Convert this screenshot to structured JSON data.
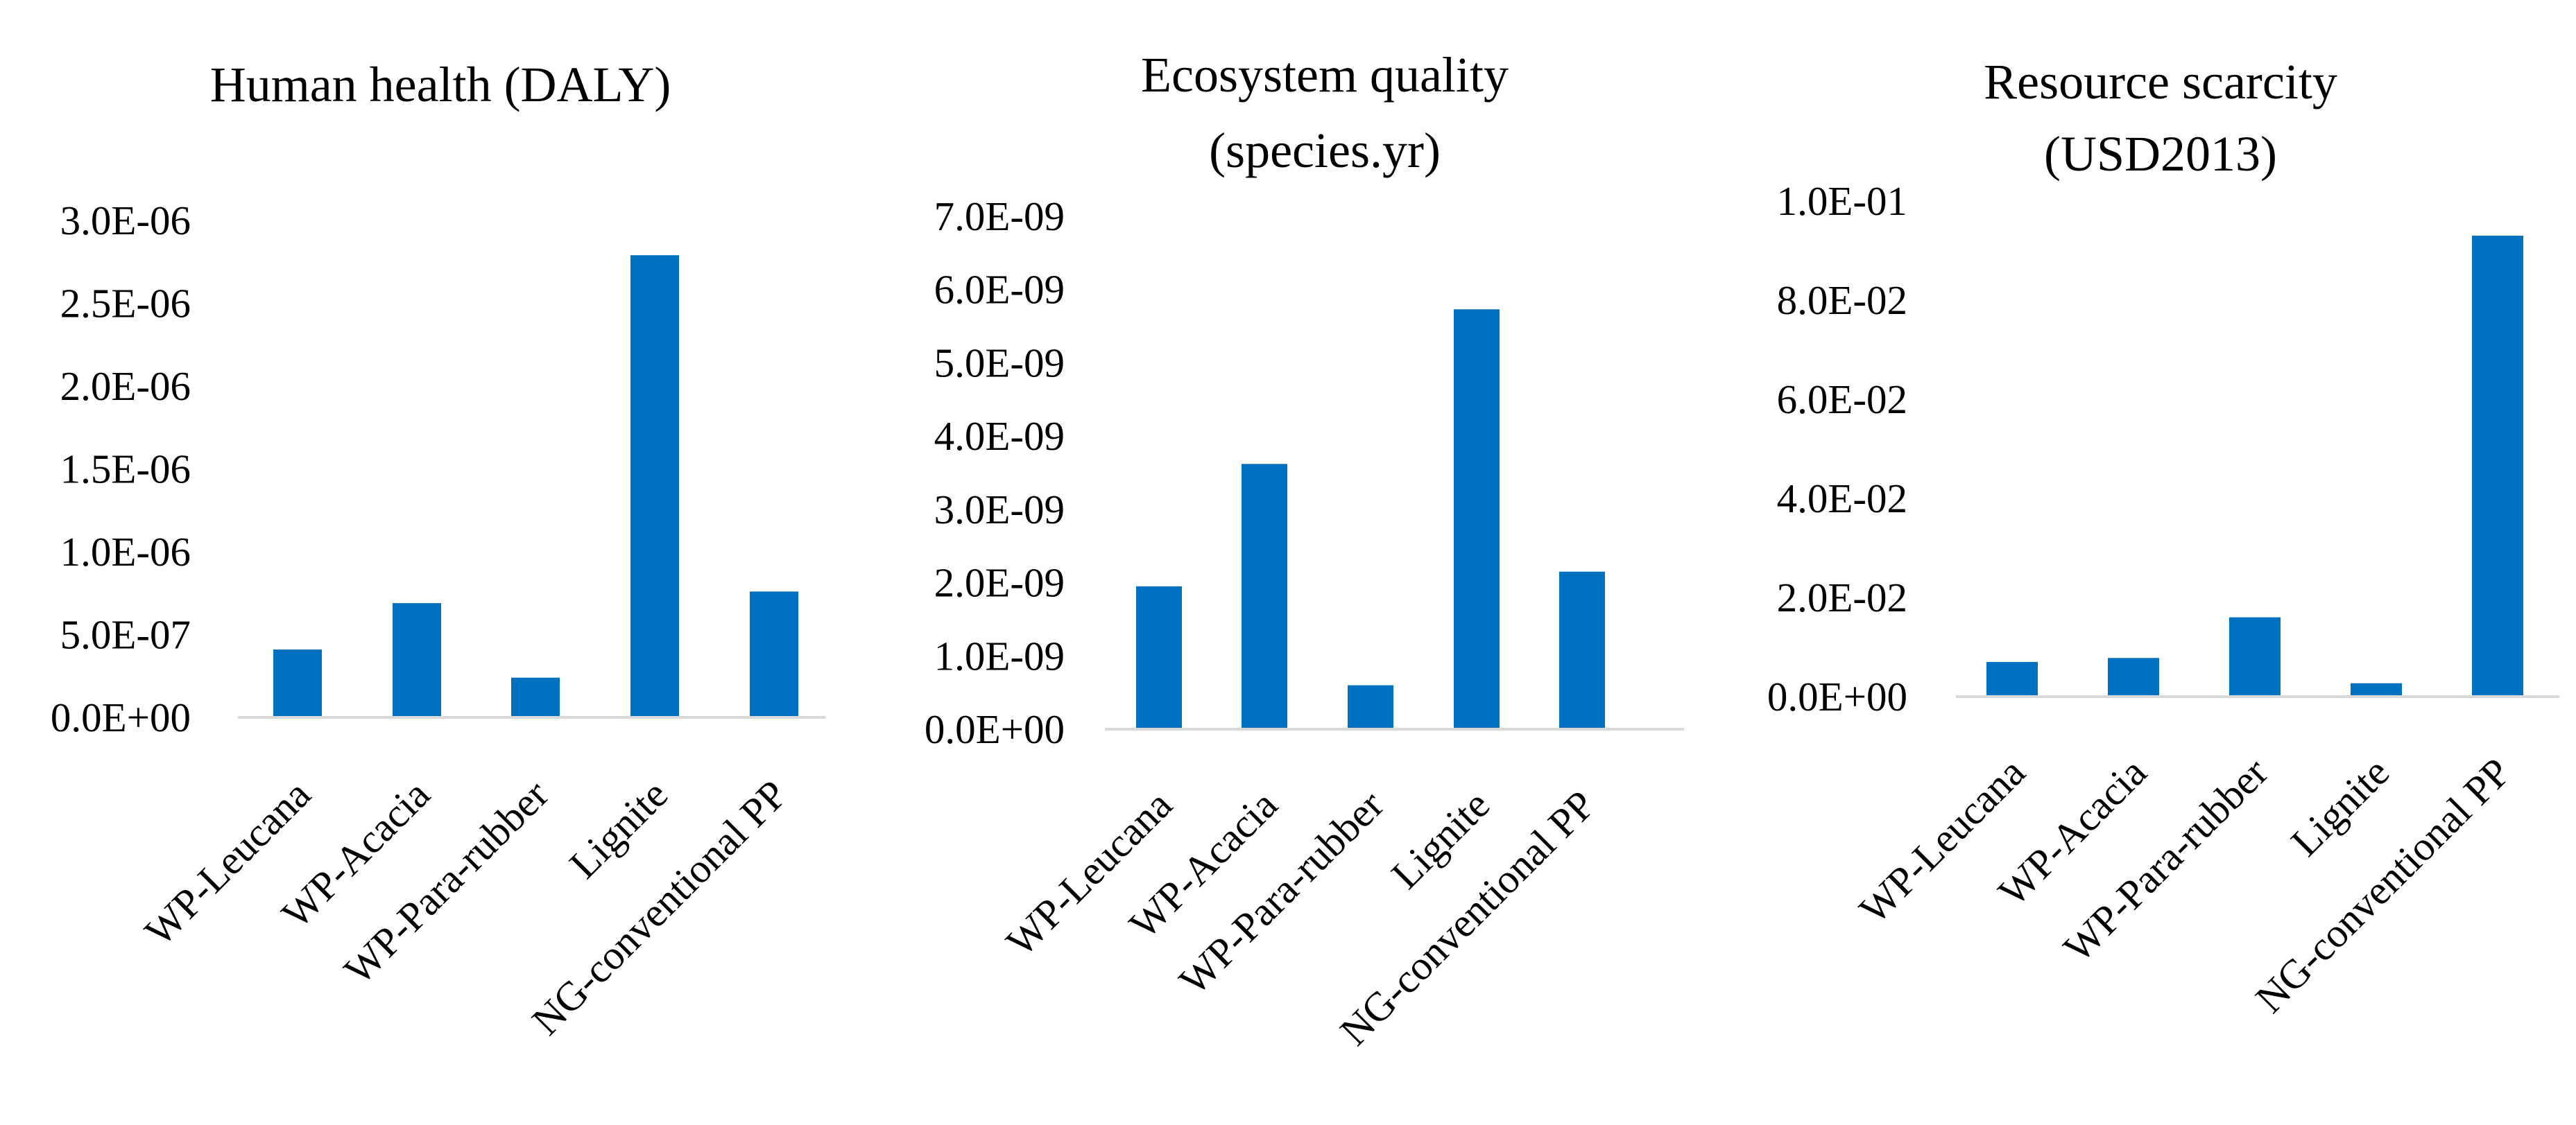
{
  "colors": {
    "bar": "#0070C0",
    "axis": "#D9D9D9",
    "text": "#000000"
  },
  "chart_data": [
    {
      "type": "bar",
      "title": [
        "Human health (DALY)"
      ],
      "categories": [
        "WP-Leucana",
        "WP-Acacia",
        "WP-Para-rubber",
        "Lignite",
        "NG-conventional PP"
      ],
      "values": [
        4.1e-07,
        6.9e-07,
        2.4e-07,
        2.79e-06,
        7.6e-07
      ],
      "ylim": [
        0,
        3e-06
      ],
      "yticks": [
        0,
        5e-07,
        1e-06,
        1.5e-06,
        2e-06,
        2.5e-06,
        3e-06
      ],
      "ytick_labels": [
        "0.0E+00",
        "5.0E-07",
        "1.0E-06",
        "1.5E-06",
        "2.0E-06",
        "2.5E-06",
        "3.0E-06"
      ],
      "xlabel": "",
      "ylabel": "",
      "grid": false,
      "legend": false
    },
    {
      "type": "bar",
      "title": [
        "Ecosystem quality",
        "(species.yr)"
      ],
      "categories": [
        "WP-Leucana",
        "WP-Acacia",
        "WP-Para-rubber",
        "Lignite",
        "NG-conventional PP"
      ],
      "values": [
        1.95e-09,
        3.62e-09,
        6e-10,
        5.73e-09,
        2.15e-09
      ],
      "ylim": [
        0,
        7e-09
      ],
      "yticks": [
        0,
        1e-09,
        2e-09,
        3e-09,
        4e-09,
        5e-09,
        6e-09,
        7e-09
      ],
      "ytick_labels": [
        "0.0E+00",
        "1.0E-09",
        "2.0E-09",
        "3.0E-09",
        "4.0E-09",
        "5.0E-09",
        "6.0E-09",
        "7.0E-09"
      ],
      "xlabel": "",
      "ylabel": "",
      "grid": false,
      "legend": false
    },
    {
      "type": "bar",
      "title": [
        "Resource scarcity",
        "(USD2013)"
      ],
      "categories": [
        "WP-Leucana",
        "WP-Acacia",
        "WP-Para-rubber",
        "Lignite",
        "NG-conventional PP"
      ],
      "values": [
        0.007,
        0.0078,
        0.016,
        0.0027,
        0.093
      ],
      "ylim": [
        0,
        0.1
      ],
      "yticks": [
        0,
        0.02,
        0.04,
        0.06,
        0.08,
        0.1
      ],
      "ytick_labels": [
        "0.0E+00",
        "2.0E-02",
        "4.0E-02",
        "6.0E-02",
        "8.0E-02",
        "1.0E-01"
      ],
      "xlabel": "",
      "ylabel": "",
      "grid": false,
      "legend": false
    }
  ]
}
